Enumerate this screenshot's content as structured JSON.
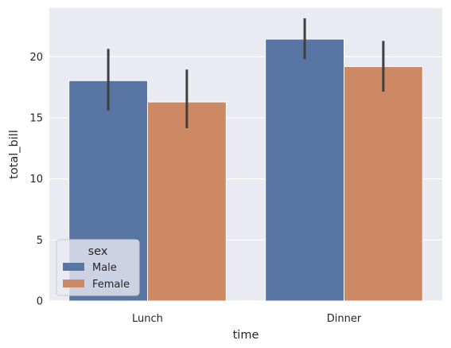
{
  "chart_data": {
    "type": "bar",
    "categories": [
      "Lunch",
      "Dinner"
    ],
    "xlabel": "time",
    "ylabel": "total_bill",
    "ylim": [
      0,
      24
    ],
    "yticks": [
      0,
      5,
      10,
      15,
      20
    ],
    "grid": true,
    "legend": {
      "title": "sex",
      "placement": "lower-left"
    },
    "series": [
      {
        "name": "Male",
        "color": "#5875a4",
        "values": [
          18.05,
          21.45
        ],
        "ci_low": [
          15.6,
          19.8
        ],
        "ci_high": [
          20.65,
          23.15
        ]
      },
      {
        "name": "Female",
        "color": "#cc8963",
        "values": [
          16.3,
          19.2
        ],
        "ci_low": [
          14.15,
          17.15
        ],
        "ci_high": [
          18.95,
          21.3
        ]
      }
    ],
    "colors": {
      "background": "#eaeaf2",
      "grid": "#ffffff",
      "errorbar": "#3f3f3f",
      "text": "#262626"
    }
  }
}
